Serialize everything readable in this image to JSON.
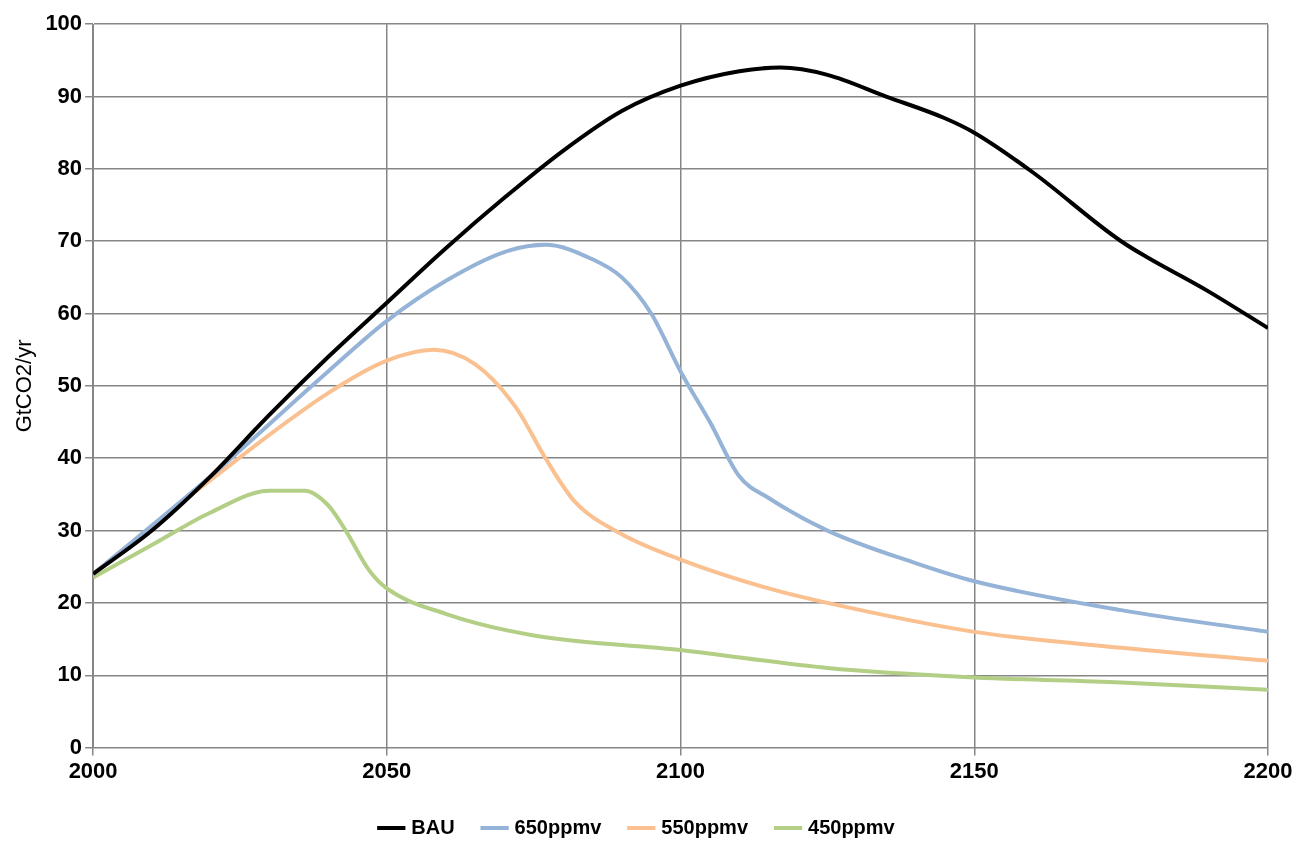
{
  "chart_data": {
    "type": "line",
    "ylabel": "GtCO2/yr",
    "xlim": [
      2000,
      2200
    ],
    "xticks": [
      2000,
      2050,
      2100,
      2150,
      2200
    ],
    "ylim": [
      0,
      100
    ],
    "yticks": [
      0,
      10,
      20,
      30,
      40,
      50,
      60,
      70,
      80,
      90,
      100
    ],
    "grid": true,
    "legend": "bottom",
    "marker": "none",
    "line_style": "solid",
    "series": [
      {
        "name": "BAU",
        "color": "#000000",
        "x": [
          2000,
          2010,
          2020,
          2030,
          2040,
          2050,
          2060,
          2070,
          2080,
          2090,
          2100,
          2110,
          2117,
          2125,
          2135,
          2145,
          2150,
          2160,
          2175,
          2190,
          2200
        ],
        "values": [
          24,
          30,
          37.5,
          46,
          54,
          61.5,
          69,
          76,
          82.5,
          88,
          91.5,
          93.5,
          94,
          93,
          90,
          87,
          85,
          79.5,
          70,
          63,
          58
        ]
      },
      {
        "name": "650ppmv",
        "color": "#95b3d7",
        "x": [
          2000,
          2020,
          2040,
          2050,
          2060,
          2070,
          2077,
          2085,
          2090,
          2095,
          2100,
          2105,
          2110,
          2115,
          2125,
          2140,
          2150,
          2175,
          2200
        ],
        "values": [
          24,
          37.5,
          52,
          59,
          64.5,
          68.5,
          69.5,
          67.5,
          65,
          60,
          52,
          45,
          37.5,
          34.5,
          30,
          25.5,
          23,
          19,
          16
        ]
      },
      {
        "name": "550ppmv",
        "color": "#fac090",
        "x": [
          2000,
          2020,
          2040,
          2050,
          2058,
          2065,
          2072,
          2077,
          2082,
          2090,
          2100,
          2115,
          2125,
          2150,
          2175,
          2200
        ],
        "values": [
          24,
          37,
          49,
          53.5,
          55,
          53,
          47,
          40,
          34,
          29.5,
          26,
          22,
          20,
          16,
          13.8,
          12
        ]
      },
      {
        "name": "450ppmv",
        "color": "#b3cf85",
        "x": [
          2000,
          2010,
          2020,
          2030,
          2036,
          2040,
          2043,
          2047,
          2050,
          2060,
          2075,
          2100,
          2125,
          2150,
          2175,
          2200
        ],
        "values": [
          23.5,
          28,
          32.5,
          35.5,
          35.5,
          33.5,
          30,
          24.5,
          22,
          18.5,
          15.5,
          13.5,
          11,
          9.7,
          9,
          8
        ]
      }
    ]
  }
}
